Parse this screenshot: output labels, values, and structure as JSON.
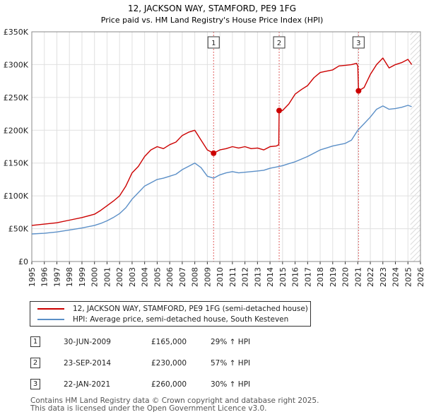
{
  "chart_data": {
    "type": "line",
    "title": "12, JACKSON WAY, STAMFORD, PE9 1FG",
    "subtitle": "Price paid vs. HM Land Registry's House Price Index (HPI)",
    "xlim": [
      1995,
      2026
    ],
    "ylim": [
      0,
      350000
    ],
    "y_ticks": [
      0,
      50000,
      100000,
      150000,
      200000,
      250000,
      300000,
      350000
    ],
    "y_tick_labels": [
      "£0",
      "£50K",
      "£100K",
      "£150K",
      "£200K",
      "£250K",
      "£300K",
      "£350K"
    ],
    "x_ticks": [
      1995,
      1996,
      1997,
      1998,
      1999,
      2000,
      2001,
      2002,
      2003,
      2004,
      2005,
      2006,
      2007,
      2008,
      2009,
      2010,
      2011,
      2012,
      2013,
      2014,
      2015,
      2016,
      2017,
      2018,
      2019,
      2020,
      2021,
      2022,
      2023,
      2024,
      2025,
      2026
    ],
    "x_tick_labels": [
      "1995",
      "1996",
      "1997",
      "1998",
      "1999",
      "2000",
      "2001",
      "2002",
      "2003",
      "2004",
      "2005",
      "2006",
      "2007",
      "2008",
      "2009",
      "2010",
      "2011",
      "2012",
      "2013",
      "2014",
      "2015",
      "2016",
      "2017",
      "2018",
      "2019",
      "2020",
      "2021",
      "2022",
      "2023",
      "2024",
      "2025",
      "2026"
    ],
    "grid": true,
    "series": [
      {
        "name": "12, JACKSON WAY, STAMFORD, PE9 1FG (semi-detached house)",
        "color": "#cc0000",
        "x": [
          1995,
          1996,
          1997,
          1998,
          1999,
          2000,
          2000.5,
          2001,
          2001.5,
          2002,
          2002.5,
          2003,
          2003.5,
          2004,
          2004.5,
          2005,
          2005.5,
          2006,
          2006.5,
          2007,
          2007.5,
          2008,
          2008.5,
          2009,
          2009.5,
          2010,
          2010.5,
          2011,
          2011.5,
          2012,
          2012.5,
          2013,
          2013.5,
          2014,
          2014.5,
          2014.7,
          2014.73,
          2015,
          2015.5,
          2016,
          2016.5,
          2017,
          2017.5,
          2018,
          2018.5,
          2019,
          2019.5,
          2020,
          2020.5,
          2020.9,
          2021,
          2021.06,
          2021.5,
          2022,
          2022.5,
          2023,
          2023.5,
          2024,
          2024.5,
          2025,
          2025.3
        ],
        "y": [
          55000,
          57000,
          59000,
          63000,
          67000,
          72000,
          78000,
          85000,
          92000,
          100000,
          115000,
          135000,
          145000,
          160000,
          170000,
          175000,
          172000,
          178000,
          182000,
          192000,
          197000,
          200000,
          185000,
          170000,
          165000,
          170000,
          172000,
          175000,
          173000,
          175000,
          172000,
          173000,
          170000,
          175000,
          176000,
          178000,
          230000,
          230000,
          240000,
          255000,
          262000,
          268000,
          280000,
          288000,
          290000,
          292000,
          298000,
          299000,
          300000,
          302000,
          298000,
          260000,
          265000,
          285000,
          300000,
          310000,
          295000,
          300000,
          303000,
          308000,
          300000
        ]
      },
      {
        "name": "HPI: Average price, semi-detached house, South Kesteven",
        "color": "#5b8fc7",
        "x": [
          1995,
          1996,
          1997,
          1998,
          1999,
          2000,
          2000.5,
          2001,
          2001.5,
          2002,
          2002.5,
          2003,
          2003.5,
          2004,
          2004.5,
          2005,
          2005.5,
          2006,
          2006.5,
          2007,
          2007.5,
          2008,
          2008.5,
          2009,
          2009.5,
          2010,
          2010.5,
          2011,
          2011.5,
          2012,
          2012.5,
          2013,
          2013.5,
          2014,
          2014.5,
          2015,
          2015.5,
          2016,
          2016.5,
          2017,
          2017.5,
          2018,
          2018.5,
          2019,
          2019.5,
          2020,
          2020.5,
          2021,
          2021.5,
          2022,
          2022.5,
          2023,
          2023.5,
          2024,
          2024.5,
          2025,
          2025.3
        ],
        "y": [
          42000,
          43000,
          45000,
          48000,
          51000,
          55000,
          58000,
          62000,
          67000,
          73000,
          82000,
          95000,
          105000,
          115000,
          120000,
          125000,
          127000,
          130000,
          133000,
          140000,
          145000,
          150000,
          143000,
          130000,
          127000,
          132000,
          135000,
          137000,
          135000,
          136000,
          137000,
          138000,
          139000,
          142000,
          144000,
          146000,
          149000,
          152000,
          156000,
          160000,
          165000,
          170000,
          173000,
          176000,
          178000,
          180000,
          185000,
          200000,
          210000,
          220000,
          232000,
          237000,
          232000,
          233000,
          235000,
          238000,
          236000
        ]
      }
    ],
    "markers": [
      {
        "label": "1",
        "x": 2009.5,
        "y": 165000
      },
      {
        "label": "2",
        "x": 2014.73,
        "y": 230000
      },
      {
        "label": "3",
        "x": 2021.06,
        "y": 260000
      }
    ],
    "shaded_future_start": 2025.2
  },
  "legend": {
    "property_label": "12, JACKSON WAY, STAMFORD, PE9 1FG (semi-detached house)",
    "hpi_label": "HPI: Average price, semi-detached house, South Kesteven"
  },
  "sales": [
    {
      "num": "1",
      "date": "30-JUN-2009",
      "price": "£165,000",
      "hpi": "29% ↑ HPI"
    },
    {
      "num": "2",
      "date": "23-SEP-2014",
      "price": "£230,000",
      "hpi": "57% ↑ HPI"
    },
    {
      "num": "3",
      "date": "22-JAN-2021",
      "price": "£260,000",
      "hpi": "30% ↑ HPI"
    }
  ],
  "footer": {
    "line1": "Contains HM Land Registry data © Crown copyright and database right 2025.",
    "line2": "This data is licensed under the Open Government Licence v3.0."
  }
}
